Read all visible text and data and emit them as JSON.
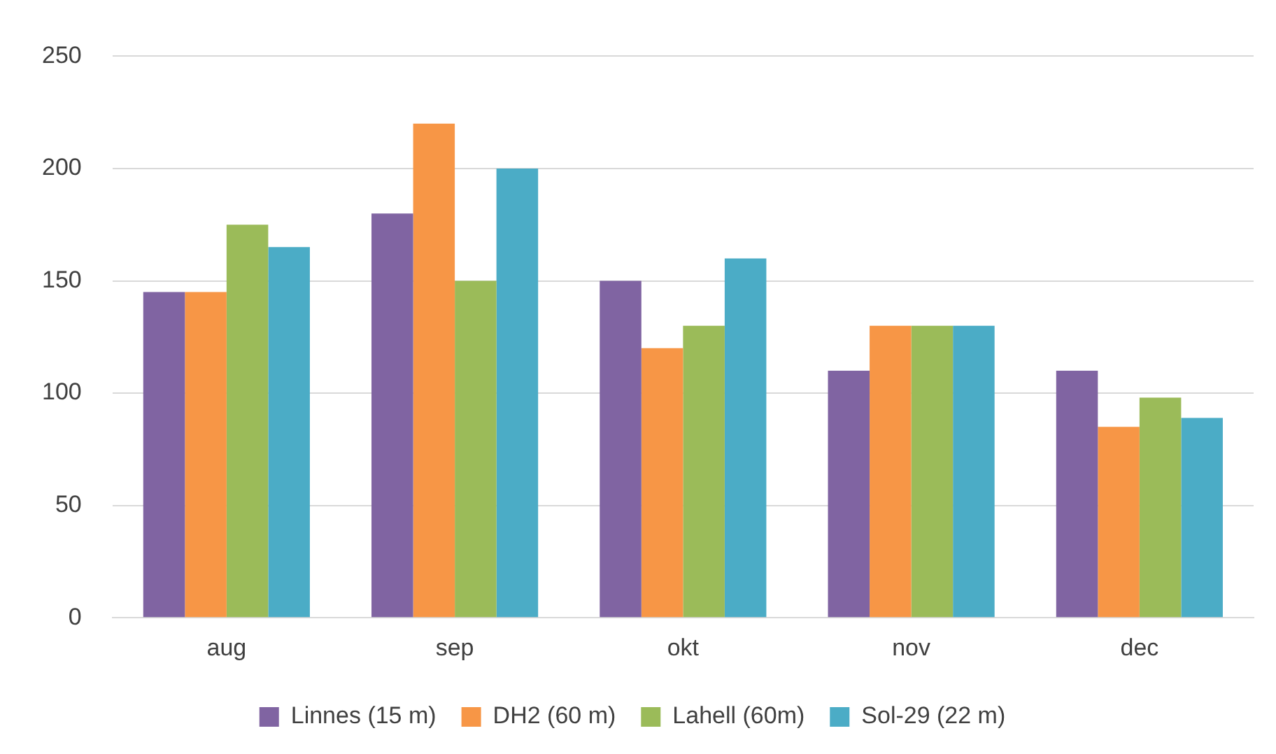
{
  "chart_data": {
    "type": "bar",
    "categories": [
      "aug",
      "sep",
      "okt",
      "nov",
      "dec"
    ],
    "series": [
      {
        "name": "Linnes (15 m)",
        "color": "#8064a2",
        "values": [
          145,
          180,
          150,
          110,
          110
        ]
      },
      {
        "name": "DH2 (60 m)",
        "color": "#f79646",
        "values": [
          145,
          220,
          120,
          130,
          85
        ]
      },
      {
        "name": "Lahell (60m)",
        "color": "#9bbb59",
        "values": [
          175,
          150,
          130,
          130,
          98
        ]
      },
      {
        "name": "Sol-29 (22 m)",
        "color": "#4bacc6",
        "values": [
          165,
          200,
          160,
          130,
          89
        ]
      }
    ],
    "ylim": [
      0,
      250
    ],
    "yticks": [
      0,
      50,
      100,
      150,
      200,
      250
    ],
    "grid": "y",
    "legend": "bottom"
  }
}
